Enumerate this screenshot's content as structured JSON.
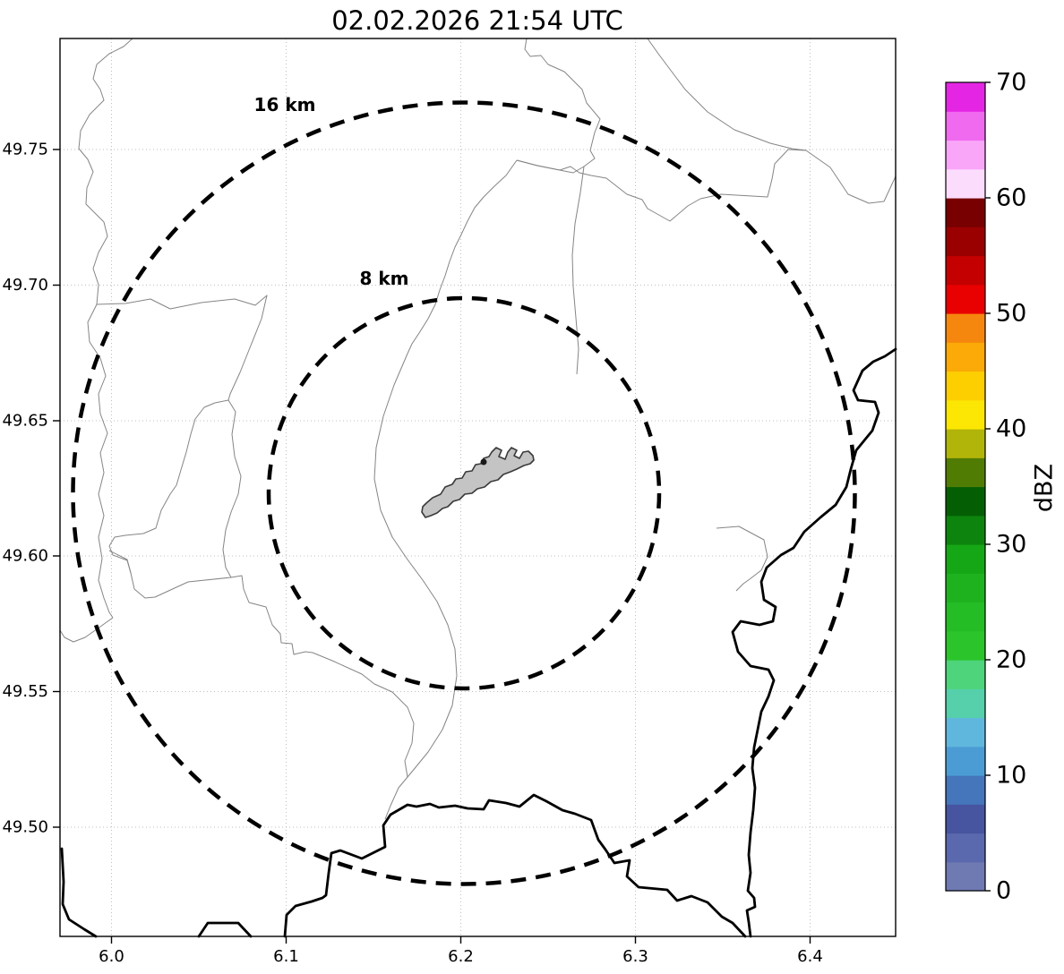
{
  "title": "02.02.2026 21:54 UTC",
  "map": {
    "x_ticks": [
      "6.0",
      "6.1",
      "6.2",
      "6.3",
      "6.4"
    ],
    "y_ticks": [
      "49.75",
      "49.70",
      "49.65",
      "49.60",
      "49.55",
      "49.50"
    ],
    "range_rings": {
      "outer_label": "16 km",
      "inner_label": "8 km"
    }
  },
  "colorbar": {
    "label": "dBZ",
    "min": 0,
    "max": 70,
    "tick_labels_top_to_bottom": [
      "70",
      "60",
      "50",
      "40",
      "30",
      "20",
      "10",
      "0"
    ],
    "segment_step_dbz": 2.5,
    "colors_bottom_to_top": [
      "#6f79b2",
      "#5a68ad",
      "#47549f",
      "#4575ba",
      "#4b9cd5",
      "#60b7dd",
      "#55d0ab",
      "#4ed47b",
      "#2bc42b",
      "#25bd25",
      "#1eb31e",
      "#16a716",
      "#0d840d",
      "#045f04",
      "#507c04",
      "#b2b509",
      "#fbe703",
      "#fdcf00",
      "#fbaa07",
      "#f6870e",
      "#e90000",
      "#c40000",
      "#9b0000",
      "#780000",
      "#fcdcfc",
      "#f9a6f9",
      "#f06af0",
      "#e426e4"
    ]
  },
  "colors": {
    "country_border": "#000000",
    "admin_border": "#858585",
    "range_ring": "#000000",
    "grid": "#bfbfbf",
    "site_area_fill": "#c4c4c4",
    "site_area_outline": "#3a3a3a"
  }
}
